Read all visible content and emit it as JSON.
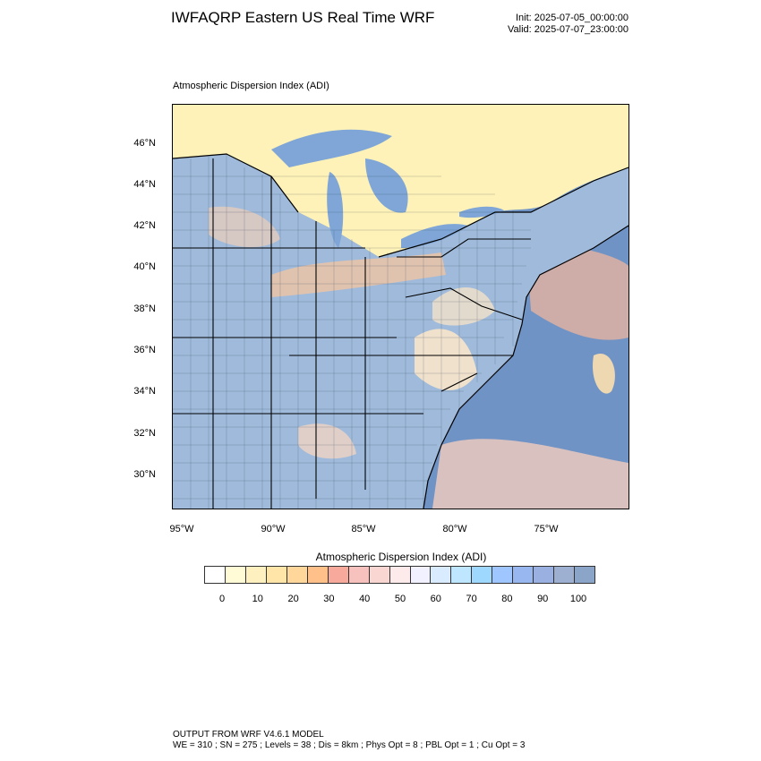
{
  "header": {
    "title": "IWFAQRP Eastern US Real Time WRF",
    "init": "Init: 2025-07-05_00:00:00",
    "valid": "Valid: 2025-07-07_23:00:00"
  },
  "map": {
    "field_label": "Atmospheric Dispersion Index   (ADI)",
    "lat_labels": [
      "46°N",
      "44°N",
      "42°N",
      "40°N",
      "38°N",
      "36°N",
      "34°N",
      "32°N",
      "30°N"
    ],
    "lon_labels": [
      "95°W",
      "90°W",
      "85°W",
      "80°W",
      "75°W"
    ],
    "colors": {
      "ocean": "#6f93c4",
      "lake": "#7fa6d6",
      "land_high": "#9fbadb",
      "land_mid": "#b9d0e8",
      "warm": "#f6c6a0",
      "pale": "#fde8c8",
      "canada": "#fff2b8",
      "offshore_warm": "#f7b79b"
    }
  },
  "colorbar": {
    "title": "Atmospheric Dispersion Index  (ADI)",
    "colors": [
      "#ffffff",
      "#fffbd6",
      "#fff0c0",
      "#ffe6a8",
      "#ffd79a",
      "#ffc089",
      "#f7a99c",
      "#f7c1bd",
      "#fad6d3",
      "#fdeaea",
      "#f1f1ff",
      "#d9ecff",
      "#bfe6ff",
      "#9fd8ff",
      "#9fc6ff",
      "#98b6f0",
      "#9ab0e0",
      "#9db0d2",
      "#8aa5c8"
    ],
    "ticks": [
      "0",
      "10",
      "20",
      "30",
      "40",
      "50",
      "60",
      "70",
      "80",
      "90",
      "100"
    ]
  },
  "footer": {
    "line1": "OUTPUT FROM WRF V4.6.1 MODEL",
    "line2": "WE = 310 ; SN = 275 ; Levels = 38 ; Dis = 8km ; Phys Opt = 8 ; PBL Opt = 1 ; Cu Opt = 3"
  }
}
